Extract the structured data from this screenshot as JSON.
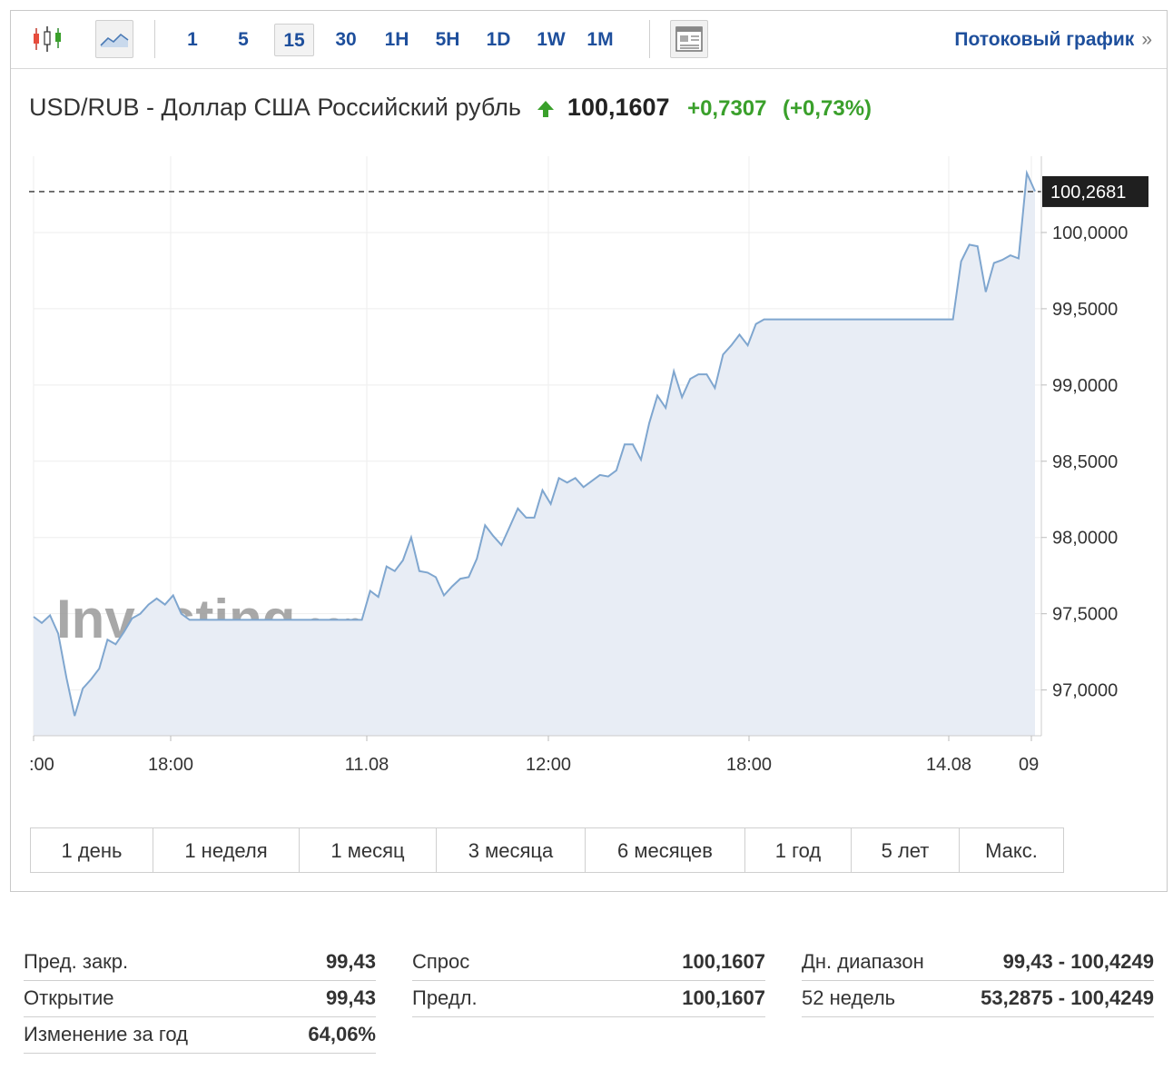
{
  "toolbar": {
    "chart_type_icons": [
      "candlestick-chart-icon",
      "line-chart-icon"
    ],
    "intervals": [
      {
        "label": "1",
        "active": false
      },
      {
        "label": "5",
        "active": false
      },
      {
        "label": "15",
        "active": true
      },
      {
        "label": "30",
        "active": false
      },
      {
        "label": "1H",
        "active": false
      },
      {
        "label": "5H",
        "active": false
      },
      {
        "label": "1D",
        "active": false
      },
      {
        "label": "1W",
        "active": false
      },
      {
        "label": "1M",
        "active": false
      }
    ],
    "layout_icon": "layout-icon",
    "stream_label": "Потоковый график",
    "stream_arrow": "»"
  },
  "quote": {
    "pair": "USD/RUB - Доллар США Российский рубль",
    "direction_icon": "arrow-up-icon",
    "last": "100,1607",
    "change": "+0,7307",
    "change_pct": "(+0,73%)"
  },
  "colors": {
    "accent": "#1e4f9c",
    "positive": "#3aa02b",
    "line": "#7fa6cf",
    "area": "#e8edf5"
  },
  "chart_data": {
    "type": "area",
    "watermark": "Investing.com",
    "ylim": [
      96.7,
      100.5
    ],
    "y_ticks": [
      "97,0000",
      "97,5000",
      "98,0000",
      "98,5000",
      "99,0000",
      "99,5000",
      "100,0000"
    ],
    "y_tick_values": [
      97.0,
      97.5,
      98.0,
      98.5,
      99.0,
      99.5,
      100.0
    ],
    "x_tick_labels": [
      ":00",
      "18:00",
      "11.08",
      "12:00",
      "18:00",
      "14.08",
      "09"
    ],
    "current_label": "100,2681",
    "current_value": 100.2681,
    "series": [
      {
        "values": [
          97.48,
          97.44,
          97.49,
          97.37,
          97.08,
          96.83,
          97.01,
          97.07,
          97.14,
          97.33,
          97.3,
          97.38,
          97.47,
          97.5,
          97.56,
          97.6,
          97.56,
          97.62,
          97.5,
          97.46,
          97.46,
          97.46,
          97.46,
          97.46,
          97.46,
          97.46,
          97.46,
          97.46,
          97.46,
          97.46,
          97.46,
          97.46,
          97.46,
          97.46,
          97.46,
          97.46,
          97.46,
          97.46,
          97.46,
          97.46,
          97.46,
          97.65,
          97.61,
          97.81,
          97.78,
          97.85,
          98.0,
          97.78,
          97.77,
          97.74,
          97.62,
          97.68,
          97.73,
          97.74,
          97.86,
          98.08,
          98.01,
          97.95,
          98.07,
          98.19,
          98.13,
          98.13,
          98.31,
          98.22,
          98.39,
          98.36,
          98.39,
          98.33,
          98.37,
          98.41,
          98.4,
          98.44,
          98.61,
          98.61,
          98.51,
          98.75,
          98.93,
          98.85,
          99.09,
          98.92,
          99.04,
          99.07,
          99.07,
          98.98,
          99.2,
          99.26,
          99.33,
          99.26,
          99.4,
          99.43,
          99.43,
          99.43,
          99.43,
          99.43,
          99.43,
          99.43,
          99.43,
          99.43,
          99.43,
          99.43,
          99.43,
          99.43,
          99.43,
          99.43,
          99.43,
          99.43,
          99.43,
          99.43,
          99.43,
          99.43,
          99.43,
          99.43,
          99.43,
          99.81,
          99.92,
          99.91,
          99.61,
          99.8,
          99.82,
          99.85,
          99.83,
          100.39,
          100.27
        ]
      }
    ]
  },
  "periods": [
    "1 день",
    "1 неделя",
    "1 месяц",
    "3 месяца",
    "6 месяцев",
    "1 год",
    "5 лет",
    "Макс."
  ],
  "stats": {
    "columns": [
      [
        {
          "label": "Пред. закр.",
          "value": "99,43"
        },
        {
          "label": "Открытие",
          "value": "99,43"
        },
        {
          "label": "Изменение за год",
          "value": "64,06%"
        }
      ],
      [
        {
          "label": "Спрос",
          "value": "100,1607"
        },
        {
          "label": "Предл.",
          "value": "100,1607"
        }
      ],
      [
        {
          "label": "Дн. диапазон",
          "value": "99,43 - 100,4249"
        },
        {
          "label": "52 недель",
          "value": "53,2875 - 100,4249"
        }
      ]
    ]
  }
}
